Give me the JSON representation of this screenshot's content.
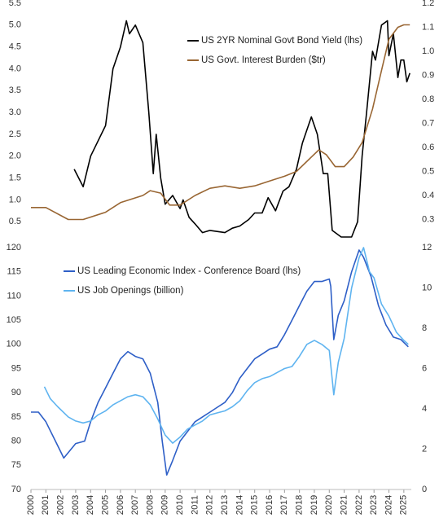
{
  "chart_data": [
    {
      "type": "line",
      "legend": "upper center",
      "xlim": [
        2000,
        2025.5
      ],
      "ylim": [
        0,
        5.5
      ],
      "yticks": [
        0.5,
        {
          "value": 1,
          "label": "1.0"
        },
        1.5,
        {
          "value": 2,
          "label": "2.0"
        },
        2.5,
        {
          "value": 3,
          "label": "3.0"
        },
        3.5,
        {
          "value": 4,
          "label": "4.0"
        },
        4.5,
        {
          "value": 5,
          "label": "5.0"
        },
        5.5
      ],
      "y2lim": [
        0.2,
        1.2
      ],
      "y2ticks": [
        0.3,
        0.4,
        0.5,
        0.6,
        0.7,
        0.8,
        0.9,
        {
          "value": 1,
          "label": "1.0"
        },
        1.1,
        1.2
      ],
      "series": [
        {
          "name": "US 2YR Nominal Govt Bond Yield (lhs)",
          "color": "#000000",
          "x": [
            2002.9,
            2003.5,
            2004,
            2005,
            2005.5,
            2006,
            2006.4,
            2006.6,
            2007,
            2007.5,
            2007.9,
            2008.2,
            2008.4,
            2008.7,
            2009,
            2009.5,
            2010,
            2010.2,
            2010.6,
            2011,
            2011.5,
            2012,
            2013,
            2013.5,
            2014,
            2014.6,
            2015,
            2015.5,
            2015.9,
            2016.4,
            2016.9,
            2017.3,
            2017.8,
            2018.2,
            2018.6,
            2018.8,
            2019.2,
            2019.6,
            2019.9,
            2020.2,
            2020.8,
            2021.5,
            2021.9,
            2022.2,
            2022.5,
            2022.9,
            2023.1,
            2023.5,
            2023.9,
            2024,
            2024.3,
            2024.6,
            2024.8,
            2025,
            2025.2,
            2025.4
          ],
          "values": [
            1.7,
            1.3,
            2.0,
            2.7,
            4.0,
            4.5,
            5.1,
            4.8,
            5.0,
            4.6,
            3.0,
            1.6,
            2.5,
            1.5,
            0.9,
            1.1,
            0.8,
            1.0,
            0.6,
            0.45,
            0.25,
            0.3,
            0.25,
            0.35,
            0.4,
            0.55,
            0.7,
            0.7,
            1.05,
            0.75,
            1.2,
            1.3,
            1.7,
            2.3,
            2.7,
            2.9,
            2.5,
            1.6,
            1.6,
            0.3,
            0.15,
            0.15,
            0.5,
            2.0,
            3.0,
            4.4,
            4.2,
            5.0,
            5.1,
            4.3,
            4.8,
            3.8,
            4.2,
            4.2,
            3.7,
            3.9
          ]
        },
        {
          "name": "US Govt. Interest Burden ($tr)",
          "color": "#996633",
          "axis": "y2",
          "x": [
            2000,
            2001,
            2002.5,
            2003.5,
            2005,
            2006,
            2007.5,
            2008,
            2008.7,
            2009.3,
            2010,
            2011,
            2012,
            2013,
            2014,
            2015,
            2016,
            2017,
            2017.8,
            2018.8,
            2019.3,
            2019.8,
            2020.4,
            2021,
            2021.6,
            2022.2,
            2022.9,
            2023.5,
            2024,
            2024.6,
            2025,
            2025.4
          ],
          "values": [
            0.35,
            0.35,
            0.3,
            0.3,
            0.33,
            0.37,
            0.4,
            0.42,
            0.41,
            0.36,
            0.36,
            0.4,
            0.43,
            0.44,
            0.43,
            0.44,
            0.46,
            0.48,
            0.5,
            0.56,
            0.59,
            0.57,
            0.52,
            0.52,
            0.56,
            0.62,
            0.76,
            0.92,
            1.05,
            1.1,
            1.11,
            1.11
          ]
        }
      ]
    },
    {
      "type": "line",
      "legend": "upper left",
      "xlim": [
        2000,
        2025.5
      ],
      "xticks": [
        {
          "value": 2000,
          "label": "2000"
        },
        {
          "value": 2001,
          "label": "2001"
        },
        {
          "value": 2002,
          "label": "2002"
        },
        {
          "value": 2003,
          "label": "2003"
        },
        {
          "value": 2004,
          "label": "2004"
        },
        {
          "value": 2005,
          "label": "2005"
        },
        {
          "value": 2006,
          "label": "2006"
        },
        {
          "value": 2007,
          "label": "2007"
        },
        {
          "value": 2008,
          "label": "2008"
        },
        {
          "value": 2009,
          "label": "2009"
        },
        {
          "value": 2010,
          "label": "2010"
        },
        {
          "value": 2011,
          "label": "2011"
        },
        {
          "value": 2012,
          "label": "2012"
        },
        {
          "value": 2013,
          "label": "2013"
        },
        {
          "value": 2014,
          "label": "2014"
        },
        {
          "value": 2015,
          "label": "2015"
        },
        {
          "value": 2016,
          "label": "2016"
        },
        {
          "value": 2017,
          "label": "2017"
        },
        {
          "value": 2018,
          "label": "2018"
        },
        {
          "value": 2019,
          "label": "2019"
        },
        {
          "value": 2020,
          "label": "2020"
        },
        {
          "value": 2021,
          "label": "2021"
        },
        {
          "value": 2022,
          "label": "2022"
        },
        {
          "value": 2023,
          "label": "2023"
        },
        {
          "value": 2024,
          "label": "2024"
        },
        {
          "value": 2025,
          "label": "2025"
        }
      ],
      "ylim": [
        70,
        120
      ],
      "yticks": [
        70,
        75,
        80,
        85,
        90,
        95,
        100,
        105,
        110,
        115,
        120
      ],
      "y2lim": [
        0,
        12
      ],
      "y2ticks": [
        0,
        2,
        4,
        6,
        8,
        10,
        12
      ],
      "series": [
        {
          "name": "US Leading Economic Index - Conference Board (lhs)",
          "color": "#2e5fc7",
          "x": [
            2000,
            2000.5,
            2001,
            2001.8,
            2002.2,
            2002.6,
            2003,
            2003.6,
            2004,
            2004.5,
            2005,
            2005.5,
            2006,
            2006.5,
            2007,
            2007.5,
            2008,
            2008.5,
            2008.8,
            2009.1,
            2009.5,
            2010,
            2010.5,
            2011,
            2011.5,
            2012,
            2012.5,
            2013,
            2013.5,
            2014,
            2014.5,
            2015,
            2015.5,
            2016,
            2016.5,
            2017,
            2017.5,
            2018,
            2018.5,
            2019,
            2019.5,
            2020,
            2020.1,
            2020.3,
            2020.6,
            2021,
            2021.5,
            2022,
            2022.3,
            2022.8,
            2023.3,
            2023.8,
            2024.3,
            2024.8,
            2025.3
          ],
          "values": [
            86,
            86,
            84,
            79,
            76.5,
            78,
            79.5,
            80,
            84,
            88,
            91,
            94,
            97,
            98.5,
            97.5,
            97,
            94,
            88,
            80,
            73,
            76,
            80,
            82,
            84,
            85,
            86,
            87,
            88,
            90,
            93,
            95,
            97,
            98,
            99,
            99.5,
            102,
            105,
            108,
            111,
            113,
            113,
            113.5,
            112,
            101,
            106,
            109,
            115,
            119.5,
            118,
            114,
            108,
            104,
            101.5,
            101,
            99.5
          ]
        },
        {
          "name": "US Job Openings (billion)",
          "color": "#5fb4f0",
          "axis": "y2",
          "x": [
            2000.9,
            2001.3,
            2001.8,
            2002.5,
            2003,
            2003.5,
            2004,
            2004.5,
            2005,
            2005.5,
            2006,
            2006.5,
            2007,
            2007.5,
            2008,
            2008.5,
            2009,
            2009.5,
            2010,
            2010.5,
            2011,
            2011.5,
            2012,
            2012.5,
            2013,
            2013.5,
            2014,
            2014.5,
            2015,
            2015.5,
            2016,
            2016.5,
            2017,
            2017.5,
            2018,
            2018.5,
            2019,
            2019.5,
            2020,
            2020.3,
            2020.6,
            2021,
            2021.5,
            2022,
            2022.3,
            2022.7,
            2023,
            2023.5,
            2024,
            2024.5,
            2025,
            2025.3
          ],
          "values": [
            5.1,
            4.5,
            4.1,
            3.6,
            3.4,
            3.3,
            3.4,
            3.7,
            3.9,
            4.2,
            4.4,
            4.6,
            4.7,
            4.6,
            4.2,
            3.5,
            2.7,
            2.3,
            2.6,
            3.0,
            3.2,
            3.4,
            3.7,
            3.8,
            3.9,
            4.1,
            4.4,
            4.9,
            5.3,
            5.5,
            5.6,
            5.8,
            6.0,
            6.1,
            6.6,
            7.2,
            7.4,
            7.2,
            6.9,
            4.7,
            6.3,
            7.5,
            10.0,
            11.5,
            12.0,
            10.8,
            10.5,
            9.2,
            8.6,
            7.8,
            7.4,
            7.2
          ]
        }
      ]
    }
  ]
}
